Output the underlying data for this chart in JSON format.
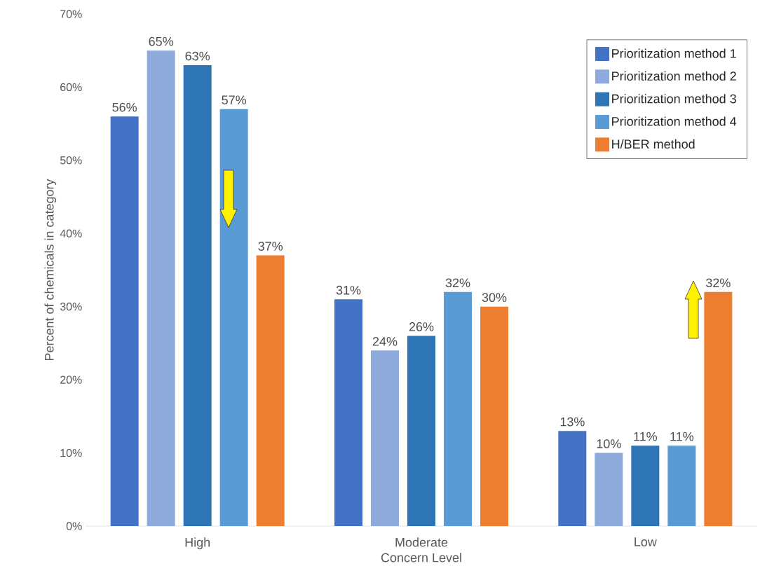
{
  "chart_data": {
    "type": "bar",
    "xlabel": "Concern Level",
    "ylabel": "Percent of chemicals in category",
    "categories": [
      "High",
      "Moderate",
      "Low"
    ],
    "series": [
      {
        "name": "Prioritization method 1",
        "color": "#4472c4",
        "values": [
          56,
          31,
          13
        ],
        "value_labels": [
          "56%",
          "31%",
          "13%"
        ]
      },
      {
        "name": "Prioritization method 2",
        "color": "#8faadc",
        "values": [
          65,
          24,
          10
        ],
        "value_labels": [
          "65%",
          "24%",
          "10%"
        ]
      },
      {
        "name": "Prioritization method 3",
        "color": "#2e75b6",
        "values": [
          63,
          26,
          11
        ],
        "value_labels": [
          "63%",
          "26%",
          "11%"
        ]
      },
      {
        "name": "Prioritization method 4",
        "color": "#5b9bd5",
        "values": [
          57,
          32,
          11
        ],
        "value_labels": [
          "57%",
          "32%",
          "11%"
        ]
      },
      {
        "name": "H/BER method",
        "color": "#ed7d31",
        "values": [
          37,
          30,
          32
        ],
        "value_labels": [
          "37%",
          "30%",
          "32%"
        ]
      }
    ],
    "ylim": [
      0,
      70
    ],
    "yticks": [
      {
        "value": 0,
        "label": "0%"
      },
      {
        "value": 10,
        "label": "10%"
      },
      {
        "value": 20,
        "label": "20%"
      },
      {
        "value": 30,
        "label": "30%"
      },
      {
        "value": 40,
        "label": "40%"
      },
      {
        "value": 50,
        "label": "50%"
      },
      {
        "value": 60,
        "label": "60%"
      },
      {
        "value": 70,
        "label": "70%"
      }
    ],
    "grid": false,
    "legend": "top right"
  }
}
